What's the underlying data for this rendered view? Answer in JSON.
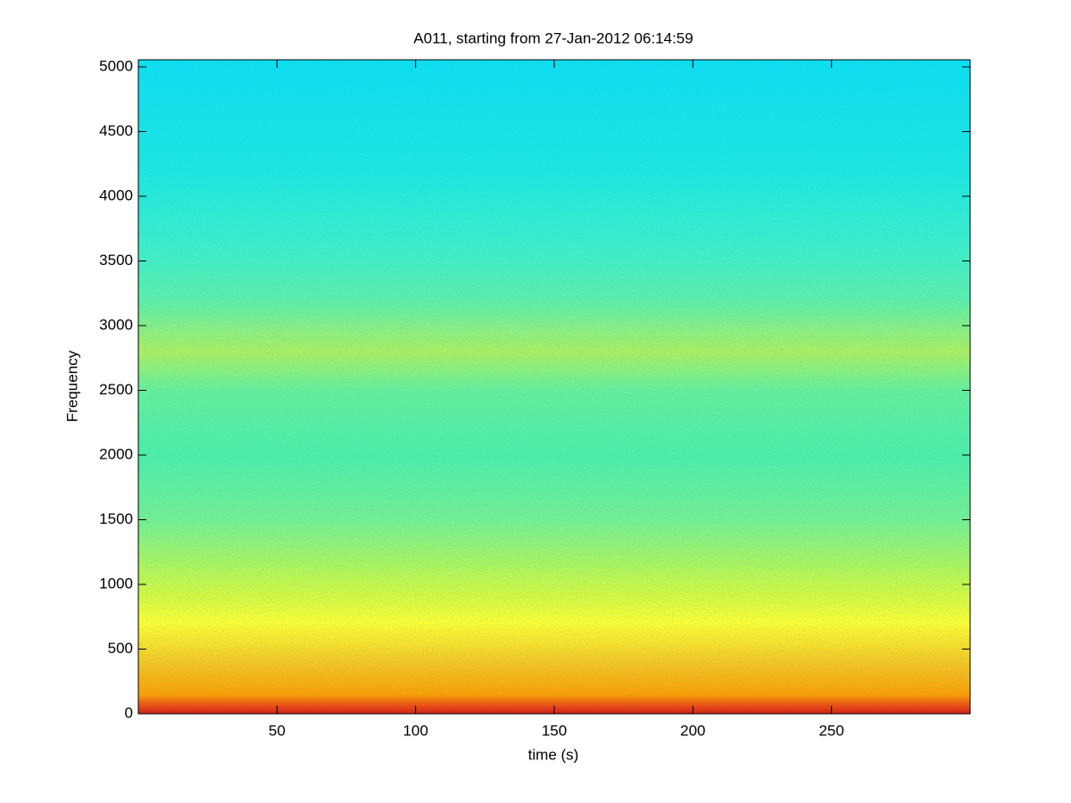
{
  "chart_data": {
    "type": "spectrogram",
    "title": "A011, starting from 27-Jan-2012 06:14:59",
    "x_label": "time (s)",
    "y_label": "Frequency",
    "xlim": [
      0,
      300
    ],
    "ylim": [
      0,
      5055
    ],
    "xticks": [
      50,
      100,
      150,
      200,
      250
    ],
    "yticks": [
      0,
      500,
      1000,
      1500,
      2000,
      2500,
      3000,
      3500,
      4000,
      4500,
      5000
    ],
    "color_stops": {
      "frequency": [
        0,
        60,
        150,
        400,
        700,
        1000,
        1500,
        2000,
        2500,
        2800,
        3200,
        3600,
        4200,
        5055
      ],
      "colors": [
        "#d81e10",
        "#f04a10",
        "#ffa000",
        "#f8c820",
        "#ffff30",
        "#c8f848",
        "#78f090",
        "#50f0a8",
        "#68f098",
        "#b0f060",
        "#60f0a8",
        "#40f0c8",
        "#20e8e0",
        "#10e0f0"
      ]
    }
  }
}
